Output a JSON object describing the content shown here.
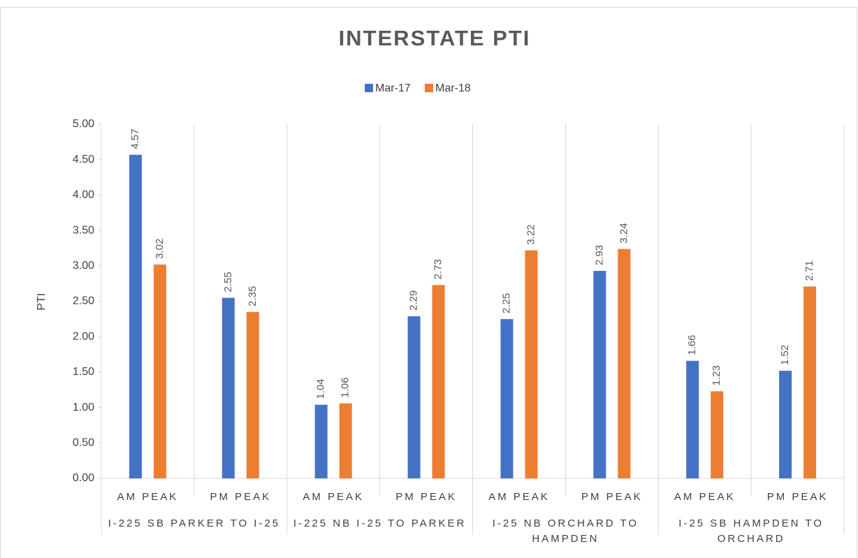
{
  "chart_data": {
    "type": "bar",
    "title": "INTERSTATE PTI",
    "y_label": "PTI",
    "groups": [
      "I-225 SB PARKER TO I-25",
      "I-225 NB I-25 TO PARKER",
      "I-25 NB ORCHARD TO HAMPDEN",
      "I-25 SB HAMPDEN TO ORCHARD"
    ],
    "categories": [
      "AM PEAK",
      "PM PEAK",
      "AM PEAK",
      "PM PEAK",
      "AM PEAK",
      "PM PEAK",
      "AM PEAK",
      "PM PEAK"
    ],
    "series": [
      {
        "name": "Mar-17",
        "color": "#4472c4",
        "values": [
          4.57,
          2.55,
          1.04,
          2.29,
          2.25,
          2.93,
          1.66,
          1.52
        ]
      },
      {
        "name": "Mar-18",
        "color": "#ed7d31",
        "values": [
          3.02,
          2.35,
          1.06,
          2.73,
          3.22,
          3.24,
          1.23,
          2.71
        ]
      }
    ],
    "ylim": [
      0,
      5
    ],
    "yticks": [
      {
        "value": 0,
        "label": "0.00"
      },
      {
        "value": 0.5,
        "label": "0.50"
      },
      {
        "value": 1,
        "label": "1.00"
      },
      {
        "value": 1.5,
        "label": "1.50"
      },
      {
        "value": 2,
        "label": "2.00"
      },
      {
        "value": 2.5,
        "label": "2.50"
      },
      {
        "value": 3,
        "label": "3.00"
      },
      {
        "value": 3.5,
        "label": "3.50"
      },
      {
        "value": 4,
        "label": "4.00"
      },
      {
        "value": 4.5,
        "label": "4.50"
      },
      {
        "value": 5,
        "label": "5.00"
      }
    ],
    "legend": "top"
  }
}
